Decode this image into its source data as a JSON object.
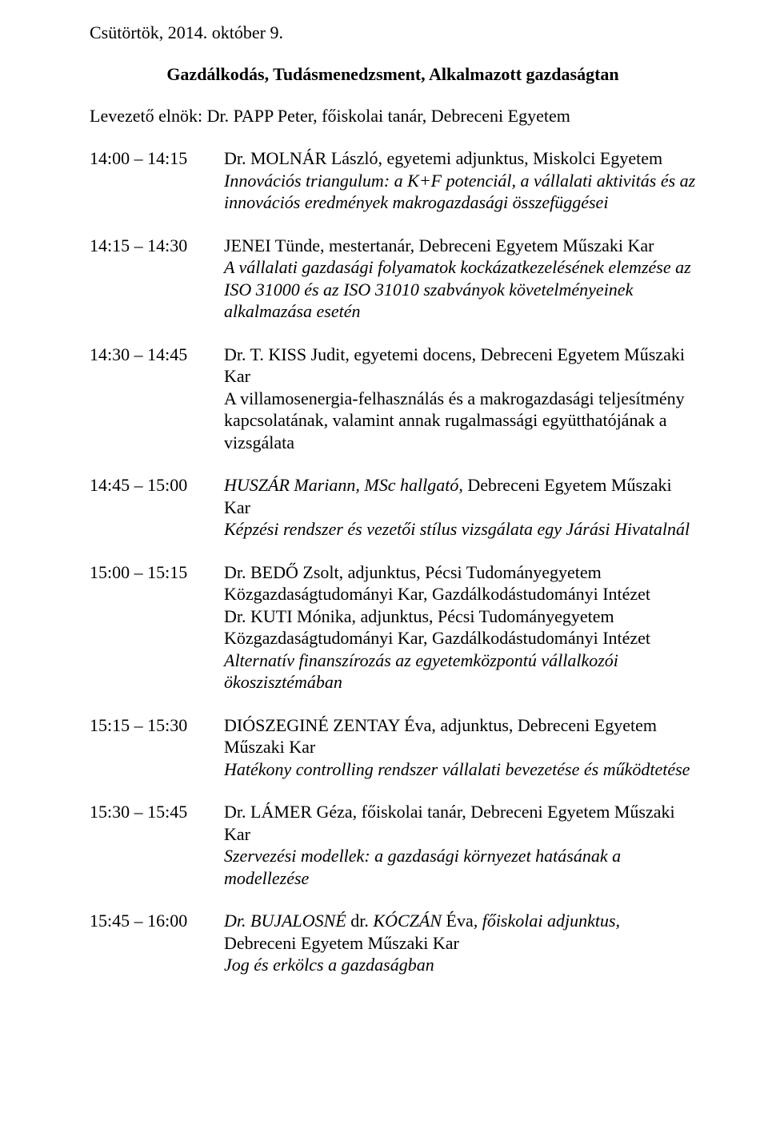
{
  "page": {
    "date": "Csütörtök, 2014. október 9.",
    "title": "Gazdálkodás, Tudásmenedzsment, Alkalmazott gazdaságtan",
    "chair": "Levezető elnök: Dr. PAPP Peter, főiskolai tanár, Debreceni Egyetem"
  },
  "entries": [
    {
      "time": "14:00 – 14:15",
      "speaker": "Dr. MOLNÁR László, egyetemi adjunktus, Miskolci Egyetem",
      "topic_html": "<span class=\"topic\">Innovációs triangulum: a K+F potenciál, a vállalati aktivitás és az innovációs eredmények makrogazdasági összefüggései</span>"
    },
    {
      "time": "14:15 – 14:30",
      "speaker": "JENEI Tünde, mestertanár, Debreceni Egyetem Műszaki Kar",
      "topic_html": "<span class=\"topic\">A vállalati gazdasági folyamatok kockázatkezelésének elemzése az ISO 31000 és az ISO 31010 szabványok követelményeinek alkalmazása esetén</span>"
    },
    {
      "time": "14:30 – 14:45",
      "speaker": "Dr. T. KISS Judit, egyetemi docens, Debreceni Egyetem Műszaki Kar",
      "topic_html": "A villamosenergia-felhasználás és a makrogazdasági teljesítmény kapcsolatának, valamint annak rugalmassági együtthatójának a vizsgálata"
    },
    {
      "time": "14:45 – 15:00",
      "speaker_html": "<span class=\"affil\">HUSZÁR Mariann, MSc hallgató,</span> Debreceni Egyetem Műszaki Kar",
      "topic_html": "<span class=\"topic\">Képzési rendszer és vezetői stílus vizsgálata egy Járási Hivatalnál</span>"
    },
    {
      "time": "15:00 – 15:15",
      "speaker_html": "Dr. BEDŐ Zsolt, adjunktus, Pécsi Tudományegyetem<br>Közgazdaságtudományi Kar, Gazdálkodástudományi Intézet<br>Dr. KUTI Mónika, adjunktus, Pécsi Tudományegyetem<br>Közgazdaságtudományi Kar, Gazdálkodástudományi Intézet",
      "topic_html": "<span class=\"topic\">Alternatív finanszírozás az egyetemközpontú vállalkozói ökoszisztémában</span>"
    },
    {
      "time": "15:15 – 15:30",
      "speaker_html": "DIÓSZEGINÉ ZENTAY Éva, adjunktus, Debreceni Egyetem Műszaki Kar",
      "topic_html": "<span class=\"topic\">Hatékony controlling rendszer vállalati bevezetése és működtetése</span>"
    },
    {
      "time": "15:30 – 15:45",
      "speaker": "Dr. LÁMER Géza, főiskolai tanár, Debreceni Egyetem Műszaki Kar",
      "topic_html": "<span class=\"topic\">Szervezési modellek: a gazdasági környezet hatásának a modellezése</span>"
    },
    {
      "time": "15:45 – 16:00",
      "speaker_html": "<span class=\"affil\">Dr. BUJALOSNÉ</span> dr. <span class=\"affil\">KÓCZÁN</span> Éva<span class=\"affil\">, főiskolai adjunktus,</span> Debreceni Egyetem Műszaki Kar",
      "topic_html": "<span class=\"topic\">Jog és erkölcs a gazdaságban</span>"
    }
  ]
}
